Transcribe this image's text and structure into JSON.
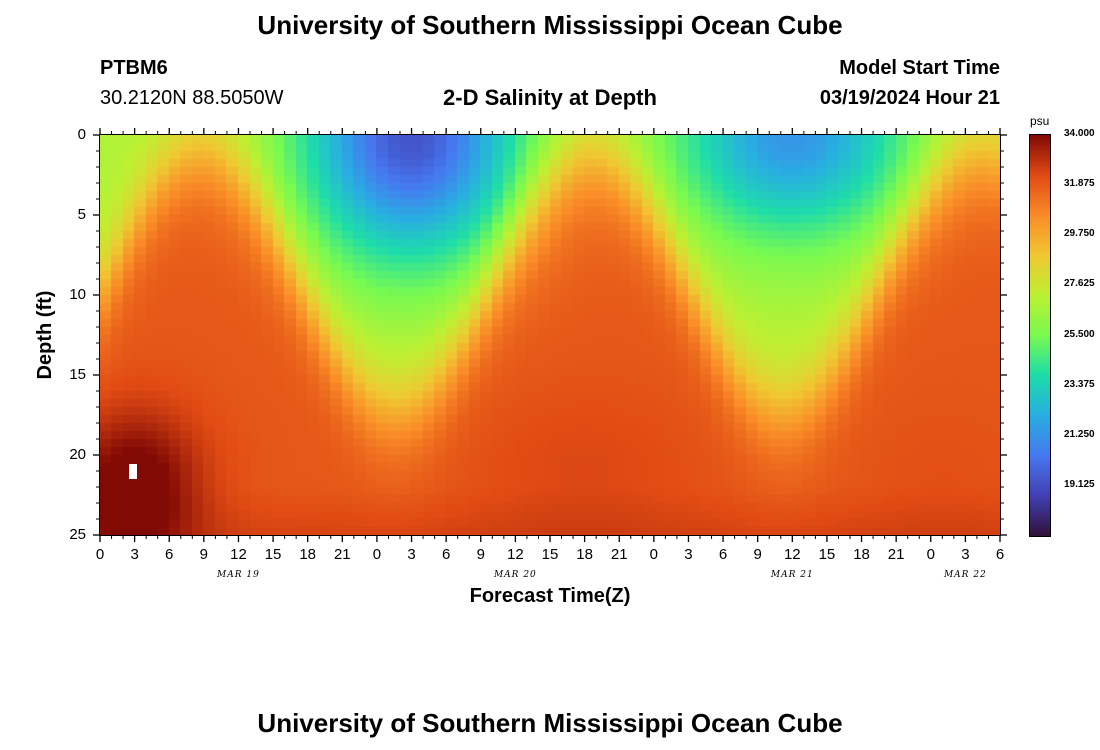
{
  "header": {
    "title": "University of Southern Mississippi Ocean Cube",
    "station_id": "PTBM6",
    "station_coords": "30.2120N  88.5050W",
    "chart_title": "2-D Salinity at Depth",
    "model_label": "Model Start Time",
    "model_time": "03/19/2024 Hour 21"
  },
  "footer": {
    "title": "University of Southern Mississippi Ocean Cube"
  },
  "chart_data": {
    "type": "heatmap",
    "title": "2-D Salinity at Depth",
    "xlabel": "Forecast Time(Z)",
    "ylabel": "Depth (ft)",
    "x_range_hours": [
      0,
      78
    ],
    "y_range_ft": [
      0,
      25
    ],
    "x_ticks": [
      "0",
      "3",
      "6",
      "9",
      "12",
      "15",
      "18",
      "21",
      "0",
      "3",
      "6",
      "9",
      "12",
      "15",
      "18",
      "21",
      "0",
      "3",
      "6",
      "9",
      "12",
      "15",
      "18",
      "21",
      "0",
      "3",
      "6"
    ],
    "y_ticks": [
      "0",
      "5",
      "10",
      "15",
      "20",
      "25"
    ],
    "date_labels": [
      {
        "label": "MAR 19",
        "hour": 12
      },
      {
        "label": "MAR 20",
        "hour": 36
      },
      {
        "label": "MAR 21",
        "hour": 60
      },
      {
        "label": "MAR 22",
        "hour": 75
      }
    ],
    "colorbar": {
      "unit": "psu",
      "min": 17.0,
      "max": 34.0,
      "labels": [
        "34.000",
        "31.875",
        "29.750",
        "27.625",
        "25.500",
        "23.375",
        "21.250",
        "19.125"
      ]
    },
    "salinity_field": {
      "description": "Low salinity plumes near surface; high salinity at depth",
      "surface_minima": [
        {
          "hour": 27,
          "min_psu": 19.5,
          "extends_to_ft": 16
        },
        {
          "hour": 60,
          "min_psu": 21.0,
          "extends_to_ft": 14
        }
      ],
      "deep_maxima": [
        {
          "hour": 3,
          "depth_ft": 22,
          "max_psu": 34.0
        },
        {
          "hour": 42,
          "depth_ft": 21,
          "max_psu": 32.3
        },
        {
          "hour": 73,
          "depth_ft": 22,
          "max_psu": 32.0
        }
      ]
    }
  }
}
